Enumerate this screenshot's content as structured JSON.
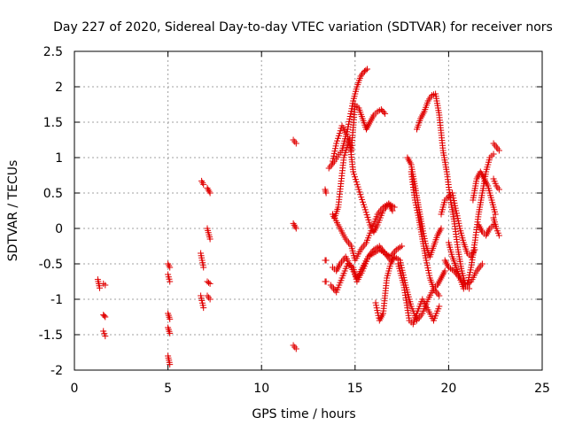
{
  "chart_data": {
    "type": "scatter",
    "title": "Day 227 of 2020, Sidereal Day-to-day VTEC variation (SDTVAR) for receiver nors",
    "xlabel": "GPS time / hours",
    "ylabel": "SDTVAR / TECUs",
    "xlim": [
      0,
      25
    ],
    "ylim": [
      -2,
      2.5
    ],
    "xticks": [
      0,
      5,
      10,
      15,
      20,
      25
    ],
    "yticks": [
      -2,
      -1.5,
      -1,
      -0.5,
      0,
      0.5,
      1,
      1.5,
      2,
      2.5
    ],
    "xtick_labels": [
      "0",
      "5",
      "10",
      "15",
      "20",
      "25"
    ],
    "ytick_labels": [
      "-2",
      "-1.5",
      "-1",
      "-0.5",
      "0",
      "0.5",
      "1",
      "1.5",
      "2",
      "2.5"
    ],
    "grid": true,
    "marker": "+",
    "color": "#e00000",
    "series": [
      {
        "name": "SDTVAR",
        "segments": [
          {
            "x": [
              1.25,
              1.35
            ],
            "y": [
              -0.72,
              -0.84
            ]
          },
          {
            "x": [
              1.55,
              1.65
            ],
            "y": [
              -0.78,
              -0.8
            ]
          },
          {
            "x": [
              1.55,
              1.65
            ],
            "y": [
              -1.22,
              -1.25
            ]
          },
          {
            "x": [
              1.55,
              1.65
            ],
            "y": [
              -1.45,
              -1.52
            ]
          },
          {
            "x": [
              5.0,
              5.1
            ],
            "y": [
              -0.5,
              -0.55
            ]
          },
          {
            "x": [
              5.0,
              5.1
            ],
            "y": [
              -0.65,
              -0.75
            ]
          },
          {
            "x": [
              5.0,
              5.1
            ],
            "y": [
              -1.2,
              -1.28
            ]
          },
          {
            "x": [
              5.0,
              5.1
            ],
            "y": [
              -1.4,
              -1.48
            ]
          },
          {
            "x": [
              5.0,
              5.1
            ],
            "y": [
              -1.8,
              -1.92
            ]
          },
          {
            "x": [
              6.8,
              6.9
            ],
            "y": [
              0.67,
              0.62
            ]
          },
          {
            "x": [
              6.75,
              6.9
            ],
            "y": [
              -0.35,
              -0.55
            ]
          },
          {
            "x": [
              6.75,
              6.9
            ],
            "y": [
              -0.95,
              -1.12
            ]
          },
          {
            "x": [
              7.1,
              7.25
            ],
            "y": [
              0.57,
              0.5
            ]
          },
          {
            "x": [
              7.1,
              7.25
            ],
            "y": [
              0.0,
              -0.15
            ]
          },
          {
            "x": [
              7.1,
              7.25
            ],
            "y": [
              -0.75,
              -0.78
            ]
          },
          {
            "x": [
              7.1,
              7.25
            ],
            "y": [
              -0.95,
              -1.0
            ]
          },
          {
            "x": [
              11.7,
              11.85
            ],
            "y": [
              1.25,
              1.2
            ]
          },
          {
            "x": [
              11.7,
              11.85
            ],
            "y": [
              0.07,
              0.0
            ]
          },
          {
            "x": [
              11.7,
              11.85
            ],
            "y": [
              -1.65,
              -1.7
            ]
          },
          {
            "x": [
              13.4,
              13.45
            ],
            "y": [
              0.55,
              0.5
            ]
          },
          {
            "x": [
              13.4,
              13.45
            ],
            "y": [
              -0.45,
              -0.45
            ]
          },
          {
            "x": [
              13.4,
              13.45
            ],
            "y": [
              -0.75,
              -0.75
            ]
          },
          {
            "x": [
              13.6,
              13.9,
              14.3,
              14.6,
              14.9,
              15.1,
              15.3,
              15.5,
              15.65
            ],
            "y": [
              0.85,
              0.95,
              1.1,
              1.4,
              1.8,
              2.0,
              2.15,
              2.22,
              2.25
            ]
          },
          {
            "x": [
              13.8,
              14.0,
              14.3,
              14.6,
              14.8,
              15.0,
              15.2,
              15.4,
              15.6,
              15.8,
              16.0,
              16.2,
              16.4,
              16.6
            ],
            "y": [
              0.95,
              1.2,
              1.45,
              1.3,
              1.1,
              1.75,
              1.7,
              1.55,
              1.4,
              1.5,
              1.6,
              1.65,
              1.68,
              1.62
            ]
          },
          {
            "x": [
              13.9,
              14.1,
              14.4,
              14.7,
              14.9,
              15.2,
              15.5,
              15.8,
              16.0,
              16.2,
              16.5,
              16.8,
              17.1
            ],
            "y": [
              0.15,
              0.3,
              1.0,
              1.25,
              0.8,
              0.55,
              0.3,
              0.05,
              -0.05,
              0.05,
              0.25,
              0.35,
              0.3
            ]
          },
          {
            "x": [
              13.8,
              14.1,
              14.5,
              14.8,
              15.0,
              15.3,
              15.6,
              15.9,
              16.2,
              16.5,
              16.8,
              17.0
            ],
            "y": [
              0.2,
              0.05,
              -0.15,
              -0.25,
              -0.45,
              -0.3,
              -0.2,
              0.0,
              0.2,
              0.3,
              0.35,
              0.25
            ]
          },
          {
            "x": [
              13.7,
              14.0,
              14.3,
              14.6,
              14.9,
              15.1,
              15.4,
              15.7,
              16.0,
              16.3,
              16.6,
              16.9,
              17.2,
              17.5
            ],
            "y": [
              -0.8,
              -0.9,
              -0.7,
              -0.5,
              -0.55,
              -0.75,
              -0.6,
              -0.4,
              -0.3,
              -0.25,
              -0.35,
              -0.4,
              -0.3,
              -0.25
            ]
          },
          {
            "x": [
              13.8,
              14.0,
              14.2,
              14.5,
              14.8,
              15.1,
              15.4,
              15.7,
              16.0,
              16.3,
              16.6,
              16.9
            ],
            "y": [
              -0.55,
              -0.6,
              -0.5,
              -0.4,
              -0.55,
              -0.7,
              -0.55,
              -0.4,
              -0.35,
              -0.3,
              -0.35,
              -0.45
            ]
          },
          {
            "x": [
              16.1,
              16.3,
              16.5,
              16.7,
              16.9,
              17.1,
              17.4,
              17.7,
              18.0,
              18.3,
              18.6,
              18.9,
              19.2,
              19.5
            ],
            "y": [
              -1.05,
              -1.3,
              -1.2,
              -0.7,
              -0.5,
              -0.4,
              -0.45,
              -0.8,
              -1.1,
              -1.3,
              -1.2,
              -1.0,
              -0.85,
              -0.95
            ]
          },
          {
            "x": [
              17.3,
              17.6,
              17.9,
              18.1,
              18.3,
              18.6,
              18.9,
              19.2,
              19.5
            ],
            "y": [
              -0.5,
              -0.8,
              -1.3,
              -1.35,
              -1.2,
              -1.0,
              -1.15,
              -1.3,
              -1.1
            ]
          },
          {
            "x": [
              17.8,
              18.0,
              18.2,
              18.4,
              18.6,
              18.8,
              19.0,
              19.2,
              19.4,
              19.6
            ],
            "y": [
              1.0,
              0.9,
              0.6,
              0.3,
              0.0,
              -0.25,
              -0.4,
              -0.25,
              -0.1,
              0.0
            ]
          },
          {
            "x": [
              18.0,
              18.2,
              18.4,
              18.6,
              18.8,
              19.0,
              19.2,
              19.4,
              19.6,
              19.8
            ],
            "y": [
              0.8,
              0.4,
              0.15,
              -0.15,
              -0.45,
              -0.7,
              -0.85,
              -0.8,
              -0.7,
              -0.6
            ]
          },
          {
            "x": [
              18.3,
              18.5,
              18.7,
              18.9,
              19.1,
              19.3,
              19.5,
              19.7,
              19.9,
              20.1,
              20.3,
              20.5,
              20.7,
              20.9,
              21.1
            ],
            "y": [
              1.4,
              1.55,
              1.65,
              1.8,
              1.88,
              1.9,
              1.6,
              1.1,
              0.8,
              0.4,
              0.1,
              -0.3,
              -0.6,
              -0.8,
              -0.85
            ]
          },
          {
            "x": [
              19.6,
              19.8,
              20.0,
              20.2,
              20.4,
              20.6,
              20.8,
              21.0,
              21.2,
              21.4
            ],
            "y": [
              0.2,
              0.4,
              0.45,
              0.5,
              0.25,
              0.0,
              -0.2,
              -0.35,
              -0.4,
              -0.3
            ]
          },
          {
            "x": [
              19.8,
              20.0,
              20.3,
              20.6,
              20.9,
              21.2,
              21.5,
              21.8
            ],
            "y": [
              -0.45,
              -0.55,
              -0.6,
              -0.7,
              -0.8,
              -0.75,
              -0.6,
              -0.5
            ]
          },
          {
            "x": [
              20.0,
              20.2,
              20.4,
              20.6,
              20.8,
              21.0,
              21.2,
              21.4,
              21.6,
              21.8,
              22.0,
              22.2,
              22.4
            ],
            "y": [
              -0.2,
              -0.4,
              -0.55,
              -0.7,
              -0.85,
              -0.8,
              -0.55,
              -0.2,
              0.2,
              0.5,
              0.8,
              1.0,
              1.05
            ]
          },
          {
            "x": [
              21.3,
              21.5,
              21.7,
              21.9,
              22.1,
              22.3,
              22.5
            ],
            "y": [
              0.4,
              0.7,
              0.8,
              0.7,
              0.6,
              0.4,
              0.2
            ]
          },
          {
            "x": [
              21.6,
              21.8,
              22.0,
              22.2,
              22.4
            ],
            "y": [
              0.05,
              -0.05,
              -0.1,
              0.0,
              0.05
            ]
          },
          {
            "x": [
              22.4,
              22.55,
              22.7
            ],
            "y": [
              1.2,
              1.15,
              1.1
            ]
          },
          {
            "x": [
              22.4,
              22.55,
              22.7
            ],
            "y": [
              0.7,
              0.6,
              0.55
            ]
          },
          {
            "x": [
              22.4,
              22.55,
              22.7
            ],
            "y": [
              0.15,
              0.0,
              -0.1
            ]
          }
        ]
      }
    ]
  }
}
